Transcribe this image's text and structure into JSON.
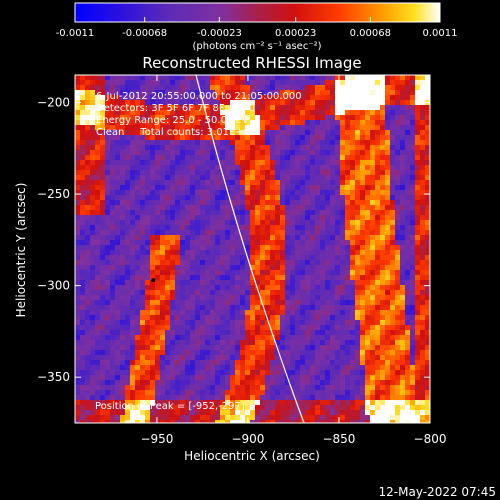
{
  "chart_data": {
    "type": "heatmap",
    "title": "Reconstructed RHESSI Image",
    "xlabel": "Heliocentric X (arcsec)",
    "ylabel": "Heliocentric Y (arcsec)",
    "xlim": [
      -995,
      -800
    ],
    "ylim": [
      -375,
      -185
    ],
    "x_ticks": [
      -950,
      -900,
      -850,
      -800
    ],
    "y_ticks": [
      -200,
      -250,
      -300,
      -350
    ],
    "colorbar": {
      "label": "(photons cm⁻² s⁻¹ asec⁻²)",
      "min": -0.0011,
      "max": 0.0011,
      "tick_labels": [
        "-0.0011",
        "-0.00068",
        "-0.00023",
        "0.00023",
        "0.00068",
        "0.0011"
      ]
    },
    "info_lines": [
      "6-Jul-2012 20:55:00.000 to 21:05:00.000",
      "Detectors: 3F 5F 6F 7F 8F, Att 0",
      "Energy Range: 25.0 - 50.0 keV",
      "Clean     Total counts: 3.01E+04"
    ],
    "peak_label": "Position of Peak = [-952,-297]",
    "peak": [
      -952,
      -297
    ],
    "timestamp": "12-May-2022 07:45"
  }
}
